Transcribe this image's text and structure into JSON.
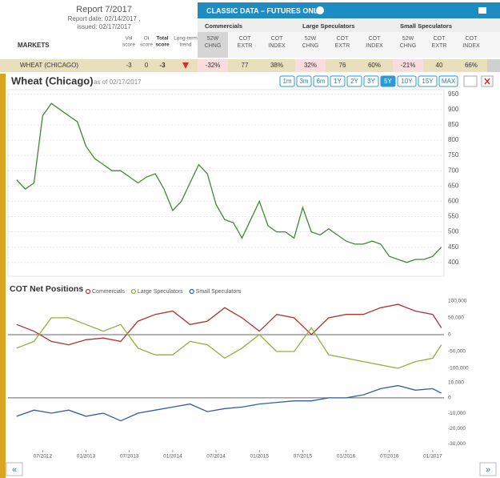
{
  "report": {
    "title": "Report 7/2017",
    "date": "Report date: 02/14/2017 ,",
    "issued": "issued: 02/17/2017"
  },
  "table": {
    "markets_label": "MARKETS",
    "score_columns": [
      [
        "Vol",
        "score"
      ],
      [
        "OI",
        "score"
      ],
      [
        "Total",
        "score"
      ],
      [
        "Long-term",
        "trend"
      ]
    ],
    "classic_title": "CLASSIC DATA – FUTURES ONLY",
    "groups": [
      "Commercials",
      "Large Speculators",
      "Small Speculators"
    ],
    "subcolumns": [
      [
        "52W",
        "CHNG"
      ],
      [
        "COT",
        "EXTR"
      ],
      [
        "COT",
        "INDEX"
      ],
      [
        "52W",
        "CHNG"
      ],
      [
        "COT",
        "EXTR"
      ],
      [
        "COT",
        "INDEX"
      ],
      [
        "52W",
        "CHNG"
      ],
      [
        "COT",
        "EXTR"
      ],
      [
        "COT",
        "INDEX"
      ]
    ],
    "rows": [
      {
        "market": "WHEAT (CHICAGO)",
        "scores": [
          "-3",
          "0",
          "-3"
        ],
        "cells": [
          "-32%",
          "77",
          "38%",
          "32%",
          "76",
          "60%",
          "-21%",
          "40",
          "66%"
        ]
      }
    ]
  },
  "range_buttons": [
    "1m",
    "3m",
    "6m",
    "1Y",
    "2Y",
    "3Y",
    "5Y",
    "10Y",
    "15Y",
    "MAX"
  ],
  "nav": {
    "prev": "«",
    "next": "»"
  },
  "chart_data": [
    {
      "type": "line",
      "title": "Wheat (Chicago)",
      "subtitle": "as of 02/17/2017",
      "x": [
        2012.2,
        2012.3,
        2012.4,
        2012.5,
        2012.6,
        2012.7,
        2012.8,
        2012.9,
        2013.0,
        2013.1,
        2013.2,
        2013.3,
        2013.4,
        2013.5,
        2013.6,
        2013.7,
        2013.8,
        2013.9,
        2014.0,
        2014.1,
        2014.2,
        2014.3,
        2014.4,
        2014.5,
        2014.6,
        2014.7,
        2014.8,
        2014.9,
        2015.0,
        2015.1,
        2015.2,
        2015.3,
        2015.4,
        2015.5,
        2015.6,
        2015.7,
        2015.8,
        2015.9,
        2016.0,
        2016.1,
        2016.2,
        2016.3,
        2016.4,
        2016.5,
        2016.6,
        2016.7,
        2016.8,
        2016.9,
        2017.0,
        2017.1
      ],
      "series": [
        {
          "name": "Wheat (Chicago)",
          "color": "#3d8b2f",
          "values": [
            670,
            640,
            660,
            880,
            920,
            900,
            880,
            860,
            780,
            740,
            720,
            700,
            700,
            680,
            660,
            680,
            690,
            640,
            570,
            600,
            660,
            720,
            690,
            590,
            540,
            530,
            480,
            540,
            600,
            520,
            500,
            500,
            480,
            580,
            500,
            490,
            510,
            490,
            470,
            460,
            460,
            470,
            460,
            420,
            410,
            400,
            410,
            410,
            420,
            450
          ]
        }
      ],
      "xlim": [
        2012.1,
        2017.13
      ],
      "ylim": [
        355,
        965
      ],
      "yticks": [
        400,
        450,
        500,
        550,
        600,
        650,
        700,
        750,
        800,
        850,
        900,
        950
      ],
      "grid": true
    },
    {
      "type": "line",
      "title": "COT Net Positions",
      "x": [
        2012.2,
        2012.4,
        2012.6,
        2012.8,
        2013.0,
        2013.2,
        2013.4,
        2013.6,
        2013.8,
        2014.0,
        2014.2,
        2014.4,
        2014.6,
        2014.8,
        2015.0,
        2015.2,
        2015.4,
        2015.6,
        2015.8,
        2016.0,
        2016.2,
        2016.4,
        2016.6,
        2016.8,
        2017.0,
        2017.1
      ],
      "series": [
        {
          "name": "Commercials",
          "color": "#b0322b",
          "values": [
            30000,
            10000,
            -20000,
            -30000,
            -15000,
            -10000,
            -20000,
            40000,
            60000,
            70000,
            30000,
            40000,
            80000,
            50000,
            10000,
            60000,
            50000,
            0,
            50000,
            60000,
            60000,
            80000,
            90000,
            70000,
            60000,
            20000
          ]
        },
        {
          "name": "Large Speculators",
          "color": "#8db33a",
          "values": [
            -40000,
            -20000,
            50000,
            50000,
            30000,
            10000,
            30000,
            -40000,
            -60000,
            -60000,
            -20000,
            -30000,
            -70000,
            -40000,
            0,
            -50000,
            -50000,
            20000,
            -60000,
            -70000,
            -80000,
            -90000,
            -100000,
            -80000,
            -70000,
            -30000
          ]
        }
      ],
      "xlim": [
        2012.1,
        2017.13
      ],
      "ylim": [
        -119000,
        114000
      ],
      "yticks": [
        {
          "value": 100000,
          "label": "100,000"
        },
        {
          "value": 50000,
          "label": "50,000"
        },
        0,
        {
          "value": -50000,
          "label": "-50,000"
        },
        {
          "value": -100000,
          "label": "-100,000"
        }
      ]
    },
    {
      "type": "line",
      "x": [
        2012.2,
        2012.4,
        2012.6,
        2012.8,
        2013.0,
        2013.2,
        2013.4,
        2013.6,
        2013.8,
        2014.0,
        2014.2,
        2014.4,
        2014.6,
        2014.8,
        2015.0,
        2015.2,
        2015.4,
        2015.6,
        2015.8,
        2016.0,
        2016.2,
        2016.4,
        2016.6,
        2016.8,
        2017.0,
        2017.1
      ],
      "series": [
        {
          "name": "Small Speculators",
          "color": "#2f5ea8",
          "values": [
            -12000,
            -8000,
            -10000,
            -8000,
            -12000,
            -10000,
            -15000,
            -10000,
            -8000,
            -6000,
            -4000,
            -9000,
            -7000,
            -6000,
            -4000,
            -3000,
            -2000,
            -2000,
            0,
            0,
            2000,
            6000,
            8000,
            5000,
            6000,
            3000
          ]
        }
      ],
      "xlim": [
        2012.1,
        2017.13
      ],
      "ylim": [
        -34000,
        13000
      ],
      "yticks": [
        {
          "value": 10000,
          "label": "10,000"
        },
        0,
        {
          "value": -10000,
          "label": "-10,000"
        },
        {
          "value": -20000,
          "label": "-20,000"
        },
        {
          "value": -30000,
          "label": "-30,000"
        }
      ],
      "xticks": [
        {
          "value": 2012.5,
          "label": "07/2012"
        },
        {
          "value": 2013.0,
          "label": "01/2013"
        },
        {
          "value": 2013.5,
          "label": "07/2013"
        },
        {
          "value": 2014.0,
          "label": "01/2014"
        },
        {
          "value": 2014.5,
          "label": "07/2014"
        },
        {
          "value": 2015.0,
          "label": "01/2015"
        },
        {
          "value": 2015.5,
          "label": "07/2015"
        },
        {
          "value": 2016.0,
          "label": "01/2016"
        },
        {
          "value": 2016.5,
          "label": "07/2016"
        },
        {
          "value": 2017.0,
          "label": "01/2017"
        }
      ]
    }
  ]
}
